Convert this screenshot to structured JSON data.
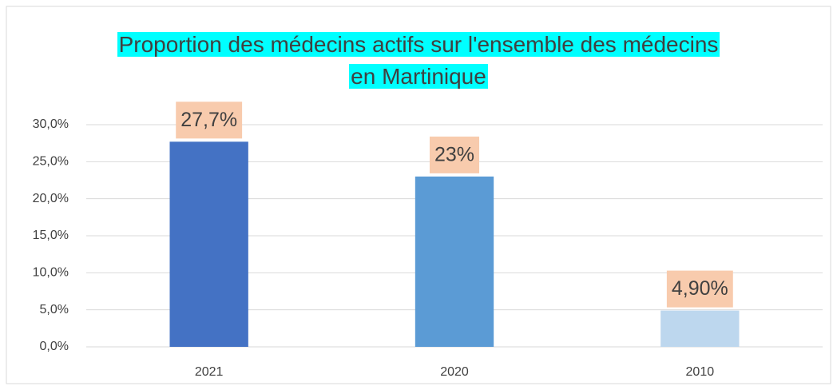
{
  "chart_data": {
    "type": "bar",
    "title": "Proportion des médecins actifs sur l'ensemble des médecins en Martinique",
    "categories": [
      "2021",
      "2020",
      "2010"
    ],
    "values": [
      27.7,
      23,
      4.9
    ],
    "value_labels": [
      "27,7%",
      "23%",
      "4,90%"
    ],
    "colors": [
      "#4472c4",
      "#5b9bd5",
      "#bdd7ee"
    ],
    "ylim": [
      0,
      30
    ],
    "yticks": [
      {
        "value": 0,
        "label": "0,0%"
      },
      {
        "value": 5,
        "label": "5,0%"
      },
      {
        "value": 10,
        "label": "10,0%"
      },
      {
        "value": 15,
        "label": "15,0%"
      },
      {
        "value": 20,
        "label": "20,0%"
      },
      {
        "value": 25,
        "label": "25,0%"
      },
      {
        "value": 30,
        "label": "30,0%"
      }
    ],
    "grid": true
  }
}
